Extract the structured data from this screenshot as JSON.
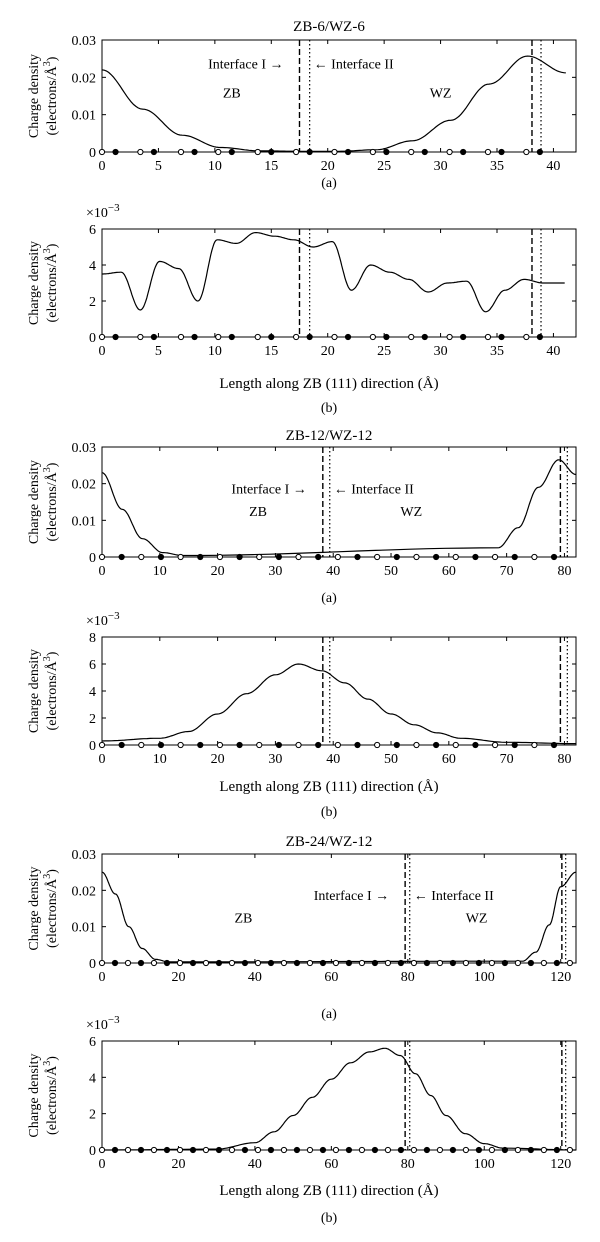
{
  "figure": {
    "ylabel_line1": "Charge density",
    "ylabel_line2": "(electrons/Å",
    "ylabel_sup": "3",
    "ylabel_tail": ")",
    "exp_prefix": "×10",
    "exp_power": "−3",
    "xlabel": "Length along ZB (111) direction (Å)"
  },
  "chart_data": [
    {
      "type": "line",
      "title": "ZB-6/WZ-6",
      "caption": "(a)",
      "xlim": [
        0,
        42
      ],
      "ylim": [
        0,
        0.03
      ],
      "xticks": [
        0,
        5,
        10,
        15,
        20,
        25,
        30,
        35,
        40
      ],
      "yticks": [
        0,
        0.01,
        0.02,
        0.03
      ],
      "ytick_labels": [
        "0",
        "0.01",
        "0.02",
        "0.03"
      ],
      "exponent": false,
      "show_xlabel": false,
      "interface_I": 17.5,
      "interface_II": 18.4,
      "interface_I_right": 38.1,
      "interface_II_right": 38.9,
      "annotations": [
        {
          "text": "Interface I",
          "x": 17.5,
          "y": 0.0237,
          "arrow": "right"
        },
        {
          "text": "Interface II",
          "x": 18.4,
          "y": 0.0237,
          "arrow": "left"
        },
        {
          "text": "ZB",
          "x": 11.5,
          "y": 0.016
        },
        {
          "text": "WZ",
          "x": 30.0,
          "y": 0.016
        }
      ],
      "series": [
        {
          "values": [
            [
              0,
              0.022
            ],
            [
              3.6,
              0.0115
            ],
            [
              7.1,
              0.0045
            ],
            [
              10.5,
              0.0012
            ],
            [
              14,
              0.0003
            ],
            [
              17.5,
              0.0002
            ],
            [
              21,
              0.0002
            ],
            [
              24.3,
              0.0006
            ],
            [
              27.5,
              0.003
            ],
            [
              30.9,
              0.0085
            ],
            [
              34.3,
              0.0182
            ],
            [
              37.7,
              0.0257
            ],
            [
              41.1,
              0.0212
            ]
          ]
        }
      ],
      "atoms": {
        "open": [
          0,
          3.4,
          7.0,
          10.3,
          13.8,
          17.2,
          20.6,
          24.0,
          27.4,
          30.8,
          34.2,
          37.6
        ],
        "filled": [
          1.2,
          4.6,
          8.2,
          11.5,
          15.0,
          18.4,
          21.8,
          25.2,
          28.6,
          32.0,
          35.4,
          38.8
        ]
      }
    },
    {
      "type": "line",
      "title": "",
      "caption": "(b)",
      "xlim": [
        0,
        42
      ],
      "ylim": [
        0,
        6
      ],
      "xticks": [
        0,
        5,
        10,
        15,
        20,
        25,
        30,
        35,
        40
      ],
      "yticks": [
        0,
        2,
        4,
        6
      ],
      "ytick_labels": [
        "0",
        "2",
        "4",
        "6"
      ],
      "exponent": true,
      "show_xlabel": true,
      "interface_I": 17.5,
      "interface_II": 18.4,
      "interface_I_right": 38.1,
      "interface_II_right": 38.9,
      "annotations": [],
      "series": [
        {
          "values": [
            [
              0,
              3.5
            ],
            [
              1.7,
              3.6
            ],
            [
              3.4,
              1.5
            ],
            [
              5.1,
              4.2
            ],
            [
              6.8,
              3.8
            ],
            [
              8.5,
              2.0
            ],
            [
              10.2,
              5.4
            ],
            [
              11.9,
              5.2
            ],
            [
              13.6,
              5.8
            ],
            [
              15.3,
              5.6
            ],
            [
              17,
              5.4
            ],
            [
              18.7,
              5.0
            ],
            [
              20.4,
              5.3
            ],
            [
              22.1,
              2.6
            ],
            [
              23.8,
              4.0
            ],
            [
              25.5,
              3.6
            ],
            [
              27.2,
              3.2
            ],
            [
              28.9,
              2.5
            ],
            [
              30.6,
              3.0
            ],
            [
              32.3,
              3.1
            ],
            [
              34,
              1.4
            ],
            [
              35.7,
              2.6
            ],
            [
              37.4,
              3.2
            ],
            [
              39.1,
              3.0
            ],
            [
              41,
              3.0
            ]
          ]
        }
      ],
      "atoms": {
        "open": [
          0,
          3.4,
          7.0,
          10.3,
          13.8,
          17.2,
          20.6,
          24.0,
          27.4,
          30.8,
          34.2,
          37.6
        ],
        "filled": [
          1.2,
          4.6,
          8.2,
          11.5,
          15.0,
          18.4,
          21.8,
          25.2,
          28.6,
          32.0,
          35.4,
          38.8
        ]
      }
    },
    {
      "type": "line",
      "title": "ZB-12/WZ-12",
      "caption": "(a)",
      "xlim": [
        0,
        82
      ],
      "ylim": [
        0,
        0.03
      ],
      "xticks": [
        0,
        10,
        20,
        30,
        40,
        50,
        60,
        70,
        80
      ],
      "yticks": [
        0,
        0.01,
        0.02,
        0.03
      ],
      "ytick_labels": [
        "0",
        "0.01",
        "0.02",
        "0.03"
      ],
      "exponent": false,
      "show_xlabel": false,
      "interface_I": 38.2,
      "interface_II": 39.4,
      "interface_I_right": 79.3,
      "interface_II_right": 80.5,
      "annotations": [
        {
          "text": "Interface I",
          "x": 38.2,
          "y": 0.0187,
          "arrow": "right"
        },
        {
          "text": "Interface II",
          "x": 39.4,
          "y": 0.0187,
          "arrow": "left"
        },
        {
          "text": "ZB",
          "x": 27.0,
          "y": 0.0125
        },
        {
          "text": "WZ",
          "x": 53.5,
          "y": 0.0125
        }
      ],
      "series": [
        {
          "values": [
            [
              0,
              0.023
            ],
            [
              3.5,
              0.013
            ],
            [
              7,
              0.005
            ],
            [
              10.5,
              0.0012
            ],
            [
              14,
              0.0004
            ],
            [
              68.5,
              0.0025
            ],
            [
              72,
              0.008
            ],
            [
              75.5,
              0.019
            ],
            [
              79,
              0.0265
            ],
            [
              82,
              0.0225
            ]
          ]
        }
      ],
      "atoms": {
        "open": [
          0,
          6.8,
          13.6,
          20.4,
          27.2,
          34,
          40.8,
          47.6,
          54.4,
          61.2,
          68,
          74.8
        ],
        "filled": [
          3.4,
          10.2,
          17,
          23.8,
          30.6,
          37.4,
          44.2,
          51,
          57.8,
          64.6,
          71.4,
          78.2
        ]
      }
    },
    {
      "type": "line",
      "title": "",
      "caption": "(b)",
      "xlim": [
        0,
        82
      ],
      "ylim": [
        0,
        8
      ],
      "xticks": [
        0,
        10,
        20,
        30,
        40,
        50,
        60,
        70,
        80
      ],
      "yticks": [
        0,
        2,
        4,
        6,
        8
      ],
      "ytick_labels": [
        "0",
        "2",
        "4",
        "6",
        "8"
      ],
      "exponent": true,
      "show_xlabel": true,
      "interface_I": 38.2,
      "interface_II": 39.4,
      "interface_I_right": 79.3,
      "interface_II_right": 80.5,
      "annotations": [],
      "series": [
        {
          "values": [
            [
              0,
              0.3
            ],
            [
              10,
              0.5
            ],
            [
              15,
              1.0
            ],
            [
              20,
              2.3
            ],
            [
              25,
              3.8
            ],
            [
              30,
              5.2
            ],
            [
              34,
              6.0
            ],
            [
              38,
              5.5
            ],
            [
              42,
              4.6
            ],
            [
              46,
              3.4
            ],
            [
              50,
              2.3
            ],
            [
              54,
              1.5
            ],
            [
              58,
              0.9
            ],
            [
              62,
              0.5
            ],
            [
              70,
              0.2
            ],
            [
              82,
              0.1
            ]
          ]
        }
      ],
      "atoms": {
        "open": [
          0,
          6.8,
          13.6,
          20.4,
          27.2,
          34,
          40.8,
          47.6,
          54.4,
          61.2,
          68,
          74.8
        ],
        "filled": [
          3.4,
          10.2,
          17,
          23.8,
          30.6,
          37.4,
          44.2,
          51,
          57.8,
          64.6,
          71.4,
          78.2
        ]
      }
    },
    {
      "type": "line",
      "title": "ZB-24/WZ-12",
      "caption": "(a)",
      "xlim": [
        0,
        124
      ],
      "ylim": [
        0,
        0.03
      ],
      "xticks": [
        0,
        20,
        40,
        60,
        80,
        100,
        120
      ],
      "yticks": [
        0,
        0.01,
        0.02,
        0.03
      ],
      "ytick_labels": [
        "0",
        "0.01",
        "0.02",
        "0.03"
      ],
      "exponent": false,
      "show_xlabel": false,
      "interface_I": 79.3,
      "interface_II": 80.5,
      "interface_I_right": 120.3,
      "interface_II_right": 121.3,
      "annotations": [
        {
          "text": "Interface I",
          "x": 79.3,
          "y": 0.0187,
          "arrow": "right"
        },
        {
          "text": "Interface II",
          "x": 80.5,
          "y": 0.0187,
          "arrow": "left"
        },
        {
          "text": "ZB",
          "x": 37.0,
          "y": 0.0125
        },
        {
          "text": "WZ",
          "x": 98.0,
          "y": 0.0125
        }
      ],
      "series": [
        {
          "values": [
            [
              0,
              0.025
            ],
            [
              3.5,
              0.019
            ],
            [
              7,
              0.01
            ],
            [
              10.5,
              0.004
            ],
            [
              14,
              0.001
            ],
            [
              17.5,
              0.0003
            ],
            [
              110,
              0.0005
            ],
            [
              113.5,
              0.003
            ],
            [
              117,
              0.0105
            ],
            [
              120,
              0.021
            ],
            [
              124,
              0.025
            ]
          ]
        }
      ],
      "atoms": {
        "open": [
          0,
          6.8,
          13.6,
          20.4,
          27.2,
          34,
          40.8,
          47.6,
          54.4,
          61.2,
          68,
          74.8,
          81.6,
          88.4,
          95.2,
          102,
          108.8,
          115.6,
          122.4
        ],
        "filled": [
          3.4,
          10.2,
          17,
          23.8,
          30.6,
          37.4,
          44.2,
          51,
          57.8,
          64.6,
          71.4,
          78.2,
          85,
          91.8,
          98.6,
          105.4,
          112.2,
          119
        ]
      }
    },
    {
      "type": "line",
      "title": "",
      "caption": "(b)",
      "xlim": [
        0,
        124
      ],
      "ylim": [
        0,
        6
      ],
      "xticks": [
        0,
        20,
        40,
        60,
        80,
        100,
        120
      ],
      "yticks": [
        0,
        2,
        4,
        6
      ],
      "ytick_labels": [
        "0",
        "2",
        "4",
        "6"
      ],
      "exponent": true,
      "show_xlabel": true,
      "interface_I": 79.3,
      "interface_II": 80.5,
      "interface_I_right": 120.3,
      "interface_II_right": 121.3,
      "annotations": [],
      "series": [
        {
          "values": [
            [
              0,
              0
            ],
            [
              30,
              0.05
            ],
            [
              40,
              0.4
            ],
            [
              45,
              1.0
            ],
            [
              50,
              1.9
            ],
            [
              55,
              2.9
            ],
            [
              60,
              3.9
            ],
            [
              65,
              4.8
            ],
            [
              70,
              5.4
            ],
            [
              74,
              5.6
            ],
            [
              78,
              5.2
            ],
            [
              82,
              4.2
            ],
            [
              86,
              3.0
            ],
            [
              90,
              1.9
            ],
            [
              95,
              0.9
            ],
            [
              100,
              0.35
            ],
            [
              105,
              0.1
            ],
            [
              124,
              0
            ]
          ]
        }
      ],
      "atoms": {
        "open": [
          0,
          6.8,
          13.6,
          20.4,
          27.2,
          34,
          40.8,
          47.6,
          54.4,
          61.2,
          68,
          74.8,
          81.6,
          88.4,
          95.2,
          102,
          108.8,
          115.6,
          122.4
        ],
        "filled": [
          3.4,
          10.2,
          17,
          23.8,
          30.6,
          37.4,
          44.2,
          51,
          57.8,
          64.6,
          71.4,
          78.2,
          85,
          91.8,
          98.6,
          105.4,
          112.2,
          119
        ]
      }
    }
  ]
}
